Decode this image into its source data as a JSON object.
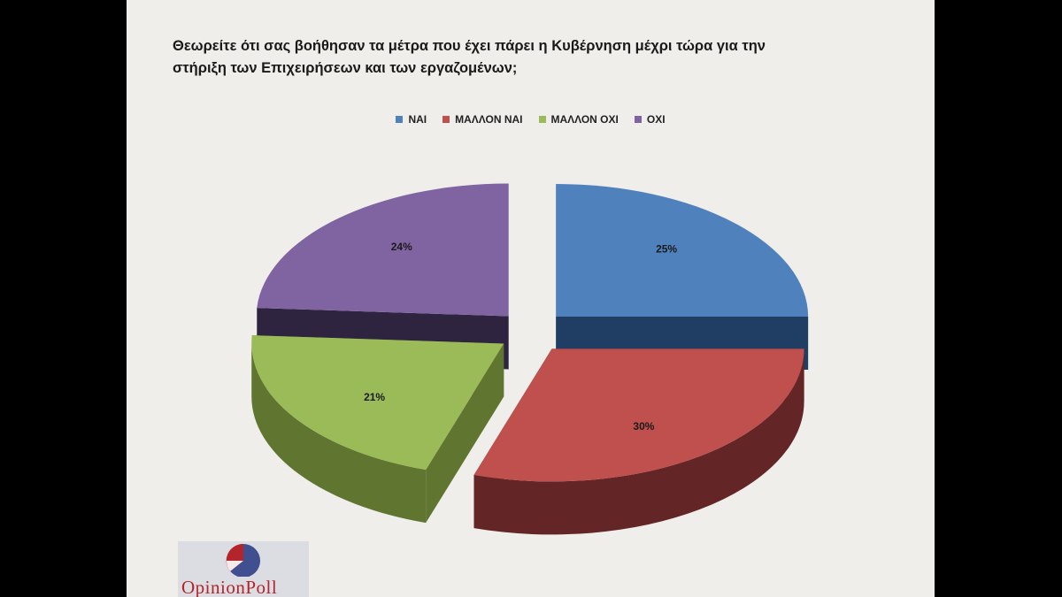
{
  "title_lines": [
    "Θεωρείτε ότι σας βοήθησαν τα  μέτρα που έχει πάρει η Κυβέρνηση μέχρι τώρα για την",
    "στήριξη των Επιχειρήσεων και των εργαζομένων;"
  ],
  "logo": {
    "text": "OpinionPoll"
  },
  "chart_data": {
    "type": "pie",
    "title": "Θεωρείτε ότι σας βοήθησαν τα  μέτρα που έχει πάρει η Κυβέρνηση μέχρι τώρα για την στήριξη των Επιχειρήσεων και των εργαζομένων;",
    "legend_position": "top",
    "exploded": true,
    "three_d": true,
    "slices": [
      {
        "label": "ΝΑΙ",
        "value": 25,
        "value_label": "25%",
        "color": "#4f81bd",
        "side_color": "#203d63"
      },
      {
        "label": "ΜΑΛΛΟΝ ΝΑΙ",
        "value": 30,
        "value_label": "30%",
        "color": "#c0504d",
        "side_color": "#632525"
      },
      {
        "label": "ΜΑΛΛΟΝ ΟΧΙ",
        "value": 21,
        "value_label": "21%",
        "color": "#9bbb59",
        "side_color": "#5f7530"
      },
      {
        "label": "ΟΧΙ",
        "value": 24,
        "value_label": "24%",
        "color": "#8064a2",
        "side_color": "#2e2440"
      }
    ]
  }
}
